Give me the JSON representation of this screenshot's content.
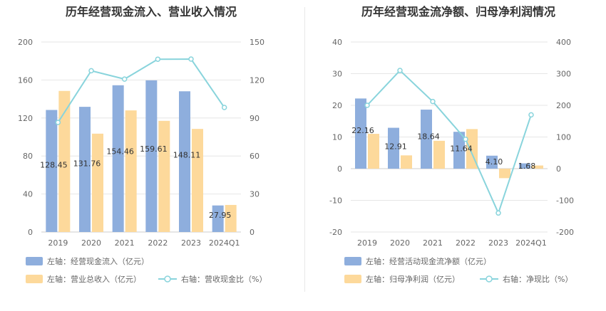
{
  "chart_data": [
    {
      "type": "bar",
      "title": "历年经营现金流入、营业收入情况",
      "categories": [
        "2019",
        "2020",
        "2021",
        "2022",
        "2023",
        "2024Q1"
      ],
      "series": [
        {
          "name": "左轴：经营现金流入（亿元）",
          "axis": "left",
          "type": "bar",
          "color": "#8eaedd",
          "values": [
            128.45,
            131.76,
            154.46,
            159.61,
            148.11,
            27.95
          ],
          "labels": [
            "128.45",
            "131.76",
            "154.46",
            "159.61",
            "148.11",
            "27.95"
          ]
        },
        {
          "name": "左轴：营业总收入（亿元）",
          "axis": "left",
          "type": "bar",
          "color": "#fdd99b",
          "values": [
            148.5,
            103.5,
            128,
            117,
            108.5,
            28.5
          ]
        },
        {
          "name": "右轴：营收现金比（%）",
          "axis": "right",
          "type": "line",
          "color": "#89d4dc",
          "values": [
            86.5,
            127.3,
            120.7,
            136.4,
            136.5,
            98.3
          ]
        }
      ],
      "left_axis": {
        "min": 0,
        "max": 200,
        "ticks": [
          "0",
          "40",
          "80",
          "120",
          "160",
          "200"
        ]
      },
      "right_axis": {
        "min": 0,
        "max": 150,
        "ticks": [
          "0",
          "30",
          "60",
          "90",
          "120",
          "150"
        ]
      },
      "grid": true,
      "legend_position": "bottom-left"
    },
    {
      "type": "bar",
      "title": "历年经营现金流净额、归母净利润情况",
      "categories": [
        "2019",
        "2020",
        "2021",
        "2022",
        "2023",
        "2024Q1"
      ],
      "series": [
        {
          "name": "左轴：经营活动现金流净额（亿元）",
          "axis": "left",
          "type": "bar",
          "color": "#8eaedd",
          "values": [
            22.16,
            12.91,
            18.64,
            11.64,
            4.1,
            1.68
          ],
          "labels": [
            "22.16",
            "12.91",
            "18.64",
            "11.64",
            "4.10",
            "1.68"
          ]
        },
        {
          "name": "左轴：归母净利润（亿元）",
          "axis": "left",
          "type": "bar",
          "color": "#fdd99b",
          "values": [
            11,
            4.2,
            8.8,
            12.5,
            -3,
            1
          ]
        },
        {
          "name": "右轴：净现比（%）",
          "axis": "right",
          "type": "line",
          "color": "#89d4dc",
          "values": [
            200,
            310,
            212,
            93,
            -140,
            170
          ]
        }
      ],
      "left_axis": {
        "min": -20,
        "max": 40,
        "ticks": [
          "-20",
          "-10",
          "0",
          "10",
          "20",
          "30",
          "40"
        ]
      },
      "right_axis": {
        "min": -200,
        "max": 400,
        "ticks": [
          "-200",
          "-100",
          "0",
          "100",
          "200",
          "300",
          "400"
        ]
      },
      "grid": true,
      "legend_position": "bottom-left"
    }
  ]
}
